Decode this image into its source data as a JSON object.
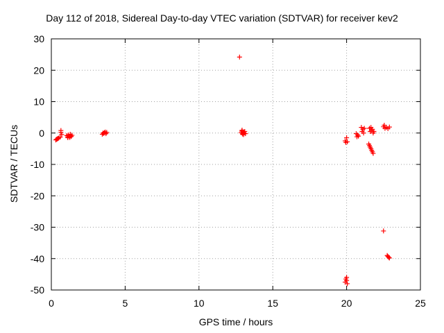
{
  "chart_data": {
    "type": "scatter",
    "title": "Day 112 of 2018, Sidereal Day-to-day VTEC variation (SDTVAR) for receiver kev2",
    "xlabel": "GPS time / hours",
    "ylabel": "SDTVAR / TECUs",
    "xlim": [
      0,
      25
    ],
    "ylim": [
      -50,
      30
    ],
    "xticks": [
      0,
      5,
      10,
      15,
      20,
      25
    ],
    "yticks": [
      -50,
      -40,
      -30,
      -20,
      -10,
      0,
      10,
      20,
      30
    ],
    "grid": true,
    "marker": "+",
    "color": "#ff0000",
    "series": [
      {
        "name": "SDTVAR",
        "points": [
          [
            0.3,
            -2.2
          ],
          [
            0.35,
            -2.0
          ],
          [
            0.4,
            -1.9
          ],
          [
            0.45,
            -1.7
          ],
          [
            0.5,
            -1.6
          ],
          [
            0.6,
            -1.3
          ],
          [
            0.65,
            0.8
          ],
          [
            0.7,
            -0.5
          ],
          [
            0.65,
            0.2
          ],
          [
            1.05,
            -0.8
          ],
          [
            1.1,
            -1.2
          ],
          [
            1.15,
            -0.6
          ],
          [
            1.2,
            -1.0
          ],
          [
            1.25,
            -1.4
          ],
          [
            1.3,
            -0.9
          ],
          [
            1.35,
            -1.1
          ],
          [
            1.4,
            -0.7
          ],
          [
            1.12,
            -1.5
          ],
          [
            1.28,
            -0.4
          ],
          [
            3.45,
            -0.4
          ],
          [
            3.55,
            -0.1
          ],
          [
            3.6,
            0.1
          ],
          [
            3.65,
            0.3
          ],
          [
            3.7,
            -0.2
          ],
          [
            3.75,
            0.2
          ],
          [
            3.5,
            0.0
          ],
          [
            12.75,
            24.2
          ],
          [
            12.85,
            0.1
          ],
          [
            12.9,
            0.6
          ],
          [
            12.95,
            -0.3
          ],
          [
            13.0,
            0.4
          ],
          [
            13.05,
            0.0
          ],
          [
            13.1,
            0.5
          ],
          [
            13.15,
            -0.2
          ],
          [
            12.92,
            0.9
          ],
          [
            13.02,
            -0.5
          ],
          [
            19.9,
            -2.5
          ],
          [
            19.95,
            -3.0
          ],
          [
            20.0,
            -1.5
          ],
          [
            20.05,
            -2.8
          ],
          [
            19.9,
            -47.5
          ],
          [
            19.95,
            -46.5
          ],
          [
            20.0,
            -47.0
          ],
          [
            20.05,
            -48.0
          ],
          [
            20.0,
            -46.0
          ],
          [
            20.65,
            -0.2
          ],
          [
            20.7,
            -1.2
          ],
          [
            20.75,
            -0.6
          ],
          [
            20.8,
            -1.0
          ],
          [
            21.0,
            1.8
          ],
          [
            21.05,
            0.5
          ],
          [
            21.1,
            1.2
          ],
          [
            21.15,
            0.0
          ],
          [
            21.2,
            1.5
          ],
          [
            21.5,
            -3.5
          ],
          [
            21.55,
            -4.0
          ],
          [
            21.6,
            -4.5
          ],
          [
            21.65,
            -5.0
          ],
          [
            21.7,
            -5.5
          ],
          [
            21.75,
            -6.0
          ],
          [
            21.8,
            -6.5
          ],
          [
            21.55,
            1.5
          ],
          [
            21.6,
            0.5
          ],
          [
            21.65,
            1.8
          ],
          [
            21.7,
            0.8
          ],
          [
            21.75,
            1.2
          ],
          [
            21.8,
            0.0
          ],
          [
            21.85,
            0.5
          ],
          [
            22.5,
            -31.2
          ],
          [
            22.5,
            2.0
          ],
          [
            22.6,
            1.5
          ],
          [
            22.7,
            1.8
          ],
          [
            22.8,
            1.4
          ],
          [
            22.9,
            1.9
          ],
          [
            22.55,
            2.5
          ],
          [
            22.75,
            -39.0
          ],
          [
            22.8,
            -39.3
          ],
          [
            22.85,
            -39.6
          ],
          [
            22.9,
            -39.8
          ]
        ]
      }
    ]
  }
}
